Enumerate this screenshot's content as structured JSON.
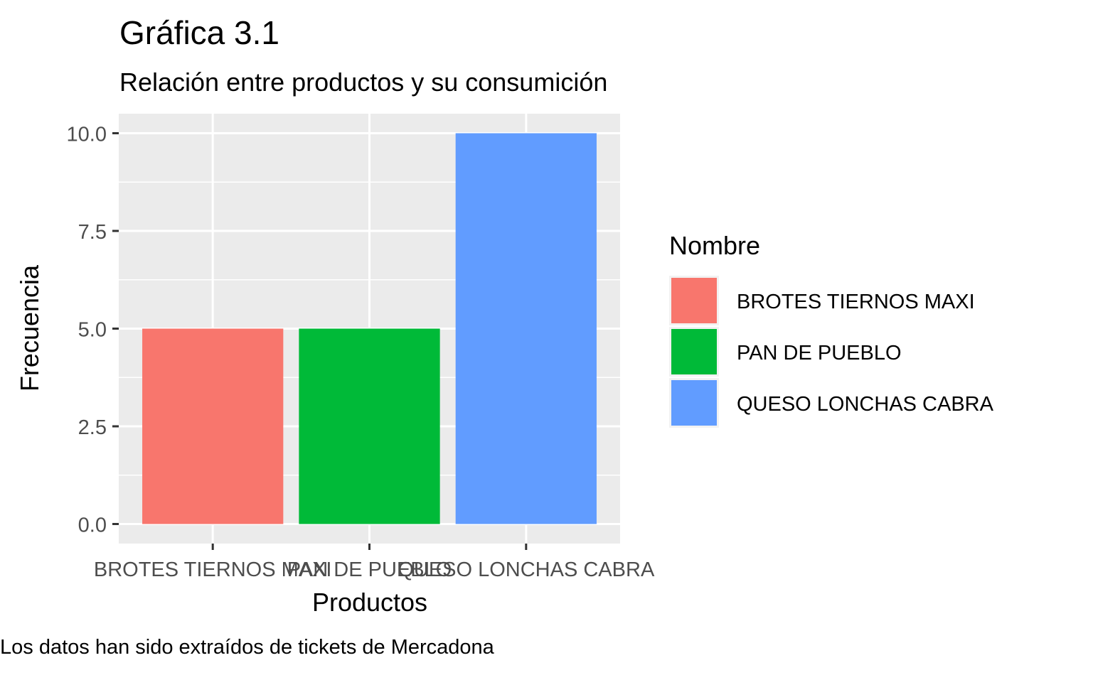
{
  "chart_data": {
    "type": "bar",
    "title": "Gráfica 3.1",
    "subtitle": "Relación entre productos y su consumición",
    "xlabel": "Productos",
    "ylabel": "Frecuencia",
    "caption": "Los datos han sido extraídos de tickets de Mercadona",
    "categories": [
      "BROTES TIERNOS MAXI",
      "PAN DE PUEBLO",
      "QUESO LONCHAS CABRA"
    ],
    "values": [
      5,
      5,
      10
    ],
    "colors": [
      "#F8766D",
      "#00BA38",
      "#619CFF"
    ],
    "ylim": [
      -0.5,
      10.5
    ],
    "yticks": [
      0,
      2.5,
      5,
      7.5,
      10
    ],
    "ytick_labels": [
      "0.0",
      "2.5",
      "5.0",
      "7.5",
      "10.0"
    ],
    "grid": true,
    "panel_background": "#EBEBEB",
    "legend": {
      "title": "Nombre",
      "position": "right",
      "entries": [
        "BROTES TIERNOS MAXI",
        "PAN DE PUEBLO",
        "QUESO LONCHAS CABRA"
      ]
    }
  }
}
